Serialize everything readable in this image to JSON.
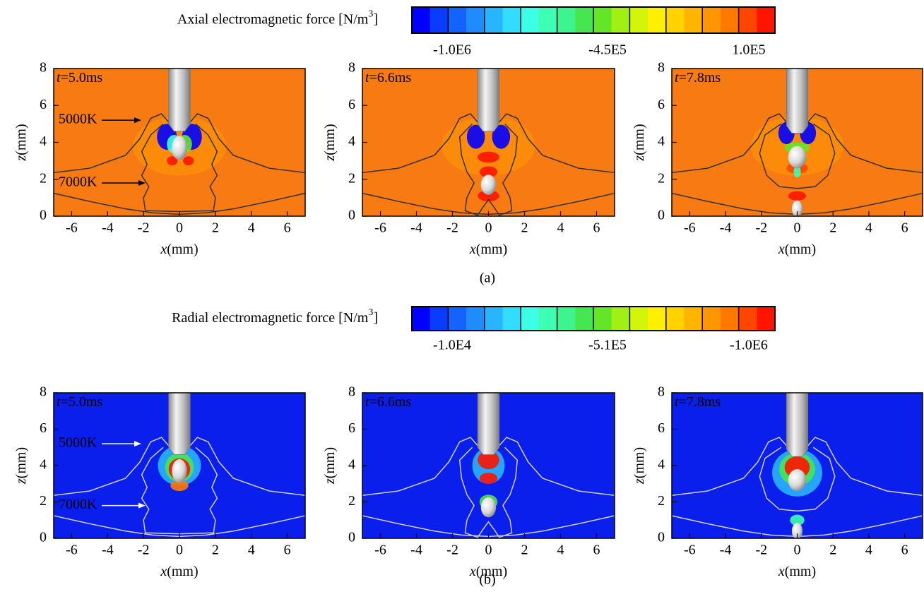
{
  "axes": {
    "xlabel_var": "x",
    "xlabel_unit": "(mm)",
    "ylabel_var": "z",
    "ylabel_unit": "(mm)",
    "xlim": [
      -7,
      7
    ],
    "ylim": [
      0,
      8
    ],
    "xticks": [
      -6,
      -4,
      -2,
      0,
      2,
      4,
      6
    ],
    "yticks": [
      0,
      2,
      4,
      6,
      8
    ]
  },
  "colormap": [
    "#0000ff",
    "#0a3cff",
    "#1463ff",
    "#1e8cff",
    "#28b4ff",
    "#32dcff",
    "#3cffe6",
    "#3cffb4",
    "#3cf58c",
    "#46e650",
    "#64e628",
    "#a0f014",
    "#d2f50a",
    "#fff000",
    "#ffd200",
    "#ffb400",
    "#ff9600",
    "#ff7800",
    "#ff4600",
    "#ff1400"
  ],
  "figure_a": {
    "colorbar": {
      "title": "Axial electromagnetic force [N/m",
      "title_sup": "3",
      "title_end": "]",
      "labels": [
        "-1.0E6",
        "-4.5E5",
        "1.0E5"
      ]
    },
    "background": "#f87a12",
    "panels": [
      {
        "time_var": "t",
        "time": "=5.0ms"
      },
      {
        "time_var": "t",
        "time": "=6.6ms"
      },
      {
        "time_var": "t",
        "time": "=7.8ms"
      }
    ],
    "annotations": [
      "5000K",
      "7000K"
    ],
    "caption": "(a)"
  },
  "figure_b": {
    "colorbar": {
      "title": "Radial electromagnetic force [N/m",
      "title_sup": "3",
      "title_end": "]",
      "labels": [
        "-1.0E4",
        "-5.1E5",
        "-1.0E6"
      ]
    },
    "background": "#0a1eec",
    "panels": [
      {
        "time_var": "t",
        "time": "=5.0ms"
      },
      {
        "time_var": "t",
        "time": "=6.6ms"
      },
      {
        "time_var": "t",
        "time": "=7.8ms"
      }
    ],
    "annotations": [
      "5000K",
      "7000K"
    ],
    "caption": "(b)"
  }
}
